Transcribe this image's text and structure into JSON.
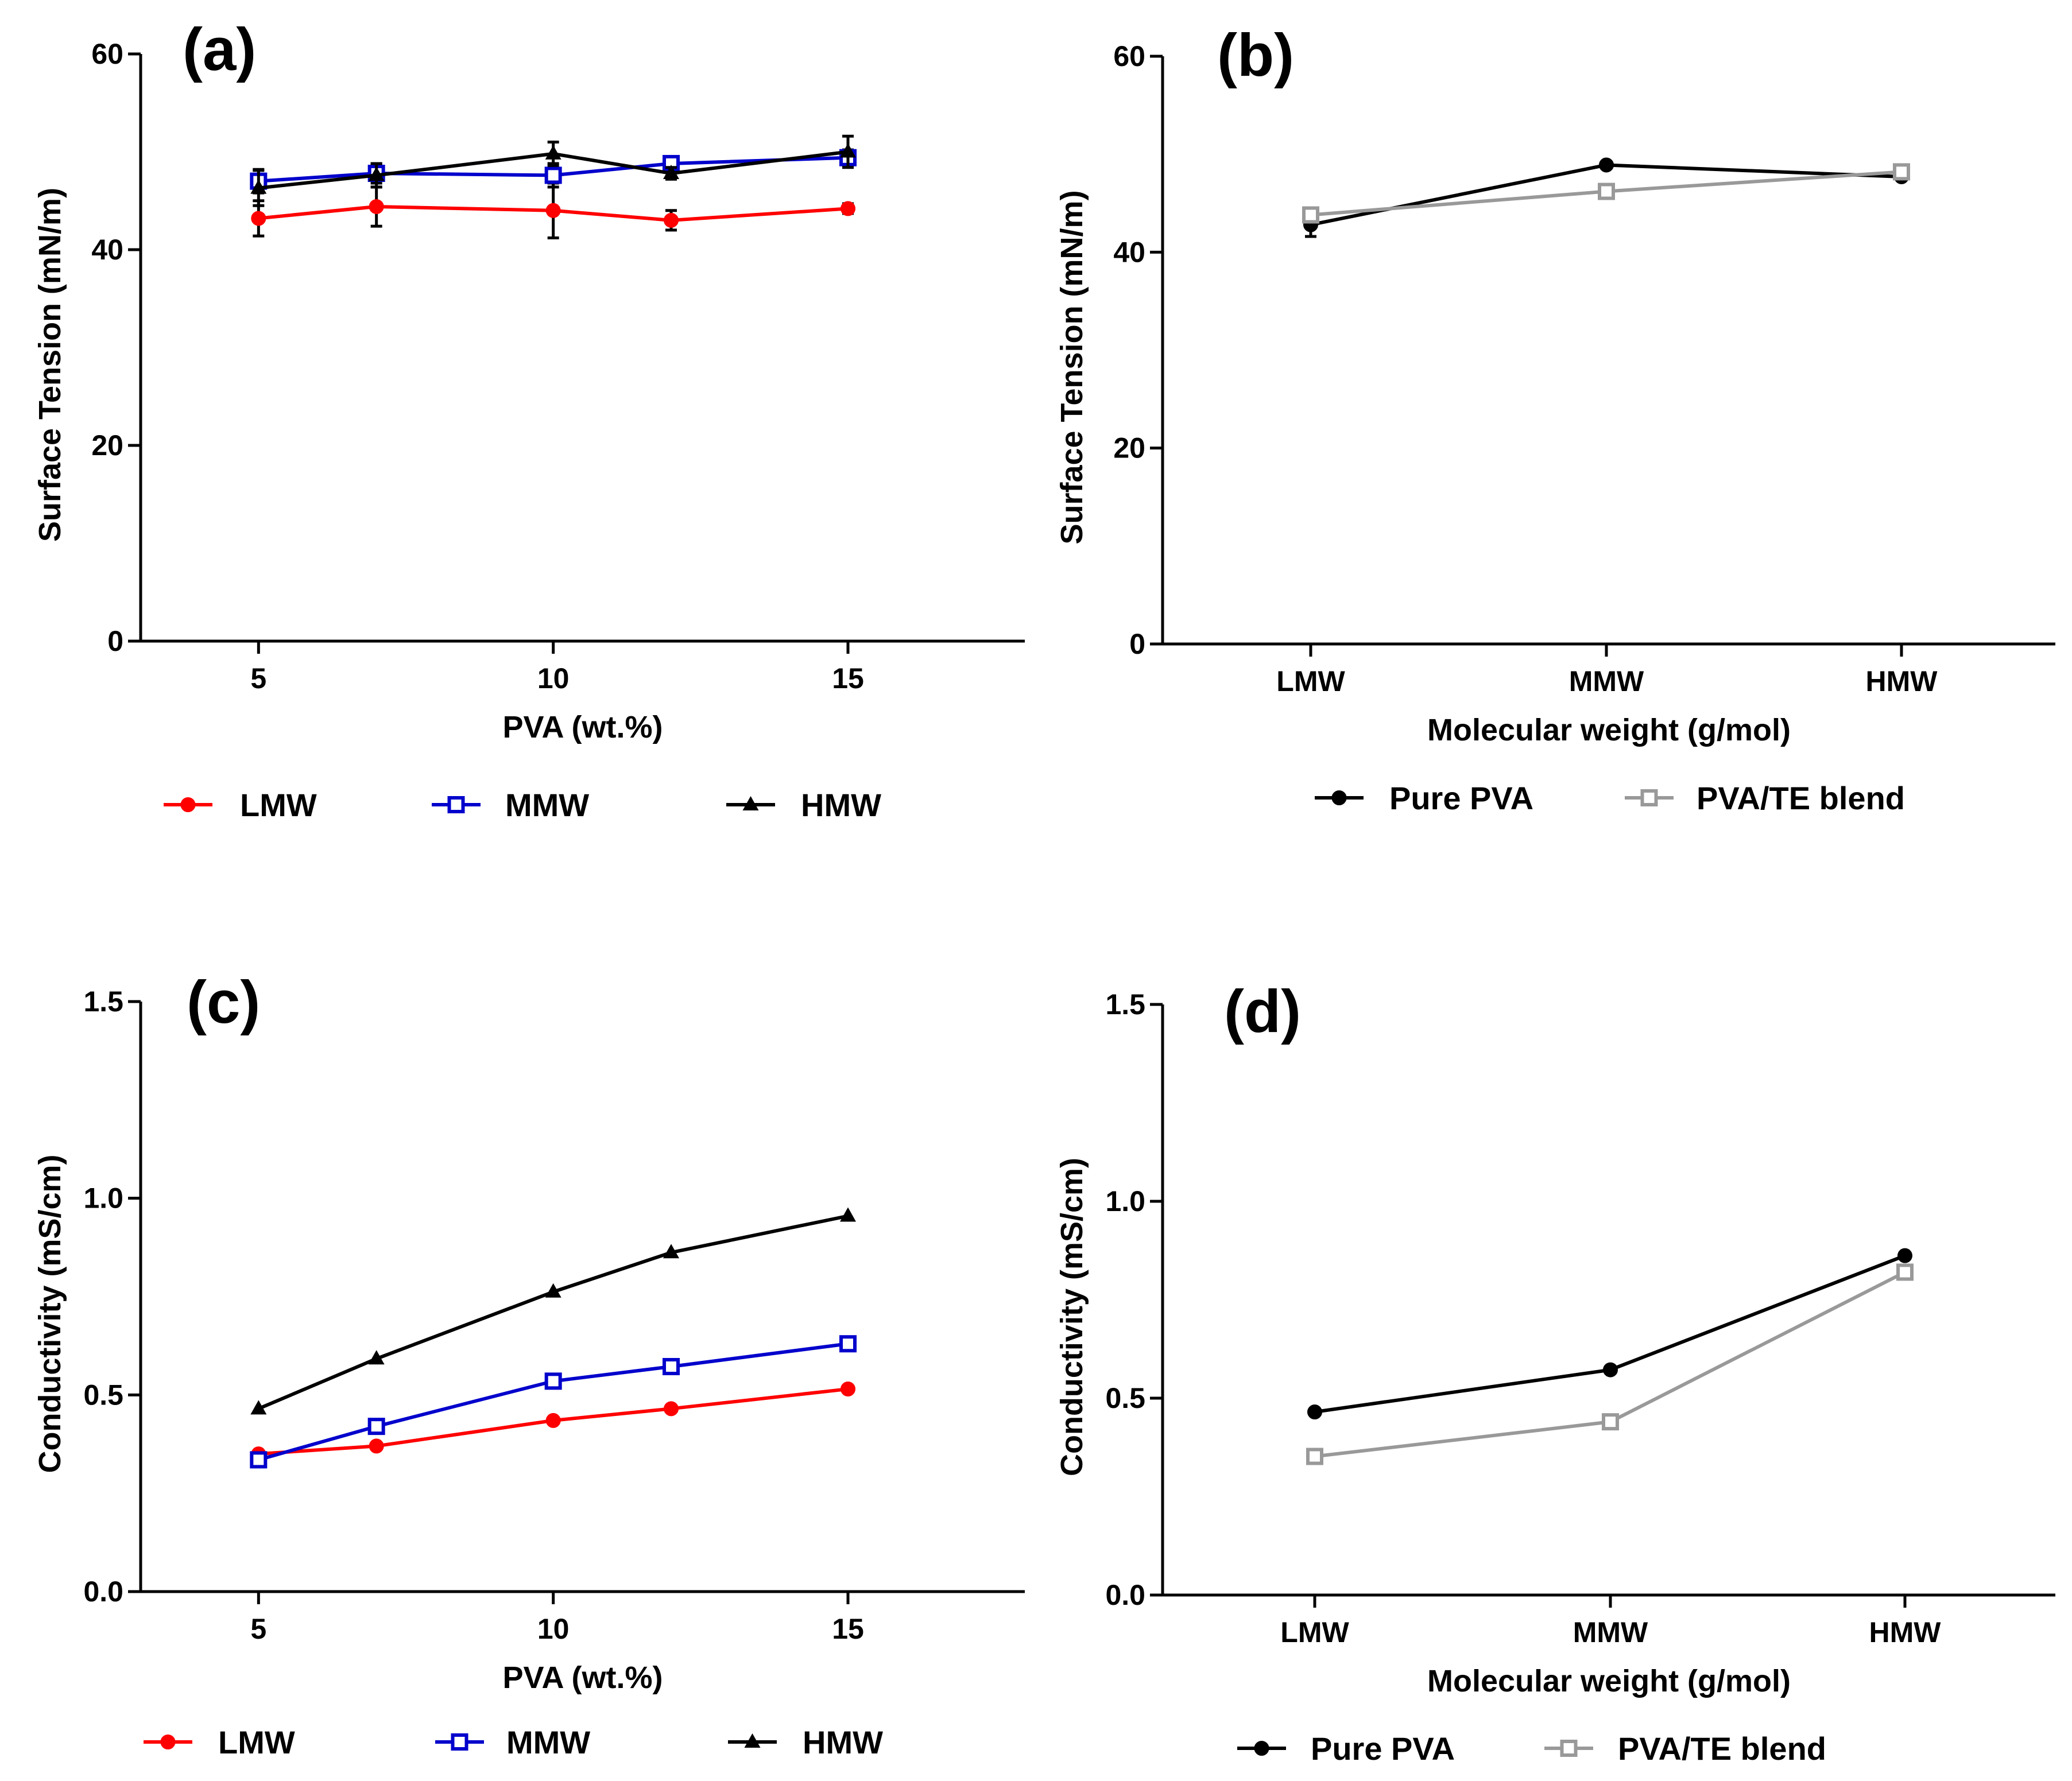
{
  "chart_data": [
    {
      "id": "a",
      "type": "line",
      "panel_label": "(a)",
      "xlabel": "PVA (wt.%)",
      "ylabel": "Surface Tension (mN/m)",
      "xlim": [
        3,
        18
      ],
      "ylim": [
        0,
        60
      ],
      "x_ticks": [
        "5",
        "10",
        "15"
      ],
      "y_ticks": [
        "0",
        "20",
        "40",
        "60"
      ],
      "series": [
        {
          "name": "LMW",
          "color": "#ff0000",
          "marker": "circle",
          "x": [
            5,
            7,
            10,
            12,
            15
          ],
          "values": [
            43.2,
            44.4,
            44.0,
            43.0,
            44.2
          ],
          "errors": [
            1.8,
            2.0,
            2.8,
            1.0,
            0.5
          ]
        },
        {
          "name": "MMW",
          "color": "#0000cc",
          "marker": "open-square",
          "x": [
            5,
            7,
            10,
            12,
            15
          ],
          "values": [
            47.0,
            47.8,
            47.6,
            48.8,
            49.4
          ],
          "errors": [
            1.2,
            1.0,
            1.2,
            0.6,
            0.8
          ]
        },
        {
          "name": "HMW",
          "color": "#000000",
          "marker": "triangle",
          "x": [
            5,
            7,
            10,
            12,
            15
          ],
          "values": [
            46.3,
            47.6,
            49.8,
            47.8,
            50.0
          ],
          "errors": [
            1.8,
            1.2,
            1.2,
            0.6,
            1.6
          ]
        }
      ]
    },
    {
      "id": "b",
      "type": "line",
      "panel_label": "(b)",
      "xlabel": "Molecular weight (g/mol)",
      "ylabel": "Surface Tension (mN/m)",
      "ylim": [
        0,
        60
      ],
      "categories": [
        "LMW",
        "MMW",
        "HMW"
      ],
      "y_ticks": [
        "0",
        "20",
        "40",
        "60"
      ],
      "series": [
        {
          "name": "Pure PVA",
          "color": "#000000",
          "marker": "circle",
          "values": [
            42.8,
            48.9,
            47.7
          ],
          "errors": [
            1.2,
            0.3,
            0.3
          ]
        },
        {
          "name": "PVA/TE blend",
          "color": "#999999",
          "marker": "open-square",
          "values": [
            43.8,
            46.2,
            48.2
          ],
          "errors": [
            0.4,
            0.3,
            0.3
          ]
        }
      ]
    },
    {
      "id": "c",
      "type": "line",
      "panel_label": "(c)",
      "xlabel": "PVA (wt.%)",
      "ylabel": "Conductivity (mS/cm)",
      "xlim": [
        3,
        18
      ],
      "ylim": [
        0,
        1.5
      ],
      "x_ticks": [
        "5",
        "10",
        "15"
      ],
      "y_ticks": [
        "0.0",
        "0.5",
        "1.0",
        "1.5"
      ],
      "series": [
        {
          "name": "LMW",
          "color": "#ff0000",
          "marker": "circle",
          "x": [
            5,
            7,
            10,
            12,
            15
          ],
          "values": [
            0.35,
            0.37,
            0.435,
            0.465,
            0.515
          ]
        },
        {
          "name": "MMW",
          "color": "#0000cc",
          "marker": "open-square",
          "x": [
            5,
            7,
            10,
            12,
            15
          ],
          "values": [
            0.335,
            0.42,
            0.535,
            0.572,
            0.63
          ]
        },
        {
          "name": "HMW",
          "color": "#000000",
          "marker": "triangle",
          "x": [
            5,
            7,
            10,
            12,
            15
          ],
          "values": [
            0.465,
            0.592,
            0.762,
            0.862,
            0.955
          ]
        }
      ]
    },
    {
      "id": "d",
      "type": "line",
      "panel_label": "(d)",
      "xlabel": "Molecular weight (g/mol)",
      "ylabel": "Conductivity (mS/cm)",
      "ylim": [
        0,
        1.5
      ],
      "categories": [
        "LMW",
        "MMW",
        "HMW"
      ],
      "y_ticks": [
        "0.0",
        "0.5",
        "1.0",
        "1.5"
      ],
      "series": [
        {
          "name": "Pure PVA",
          "color": "#000000",
          "marker": "circle",
          "values": [
            0.465,
            0.572,
            0.862
          ]
        },
        {
          "name": "PVA/TE blend",
          "color": "#999999",
          "marker": "open-square",
          "values": [
            0.352,
            0.44,
            0.82
          ]
        }
      ]
    }
  ]
}
